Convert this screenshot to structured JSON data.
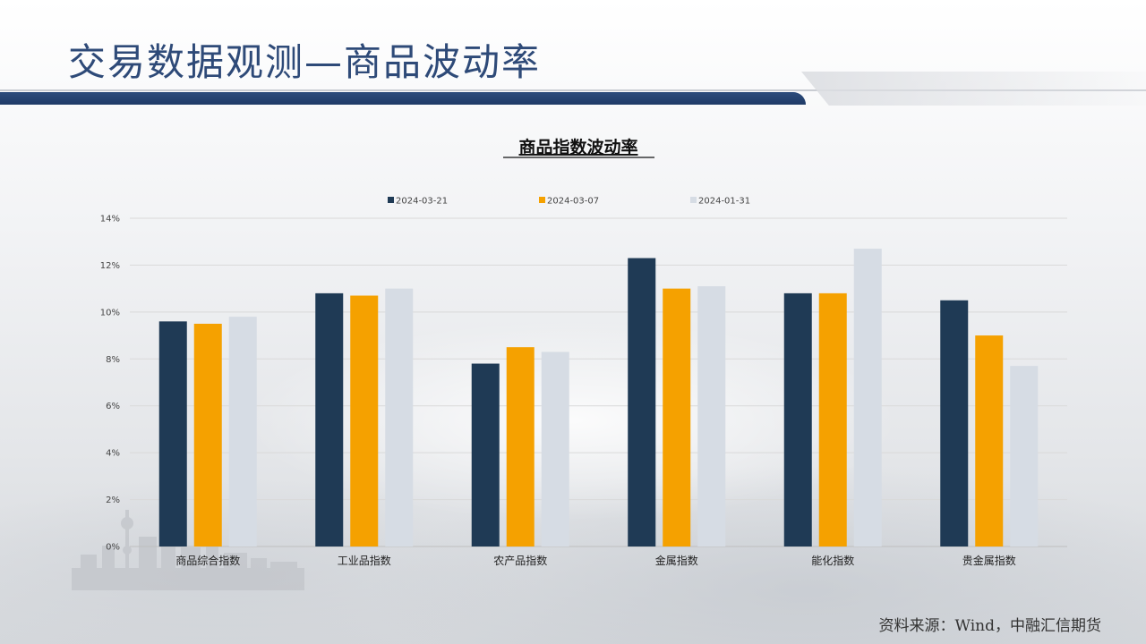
{
  "page": {
    "title": "交易数据观测—商品波动率",
    "source": "资料来源：Wind，中融汇信期货"
  },
  "colors": {
    "title": "#2e4a78",
    "band": "#1f3a66",
    "series": [
      "#1f3a55",
      "#f5a100",
      "#d6dce4"
    ],
    "grid": "#d9d9d9",
    "axis_text": "#444444"
  },
  "chart_data": {
    "type": "bar",
    "title": "商品指数波动率",
    "categories": [
      "商品综合指数",
      "工业品指数",
      "农产品指数",
      "金属指数",
      "能化指数",
      "贵金属指数"
    ],
    "series": [
      {
        "name": "2024-03-21",
        "values": [
          9.6,
          10.8,
          7.8,
          12.3,
          10.8,
          10.5
        ]
      },
      {
        "name": "2024-03-07",
        "values": [
          9.5,
          10.7,
          8.5,
          11.0,
          10.8,
          9.0
        ]
      },
      {
        "name": "2024-01-31",
        "values": [
          9.8,
          11.0,
          8.3,
          11.1,
          12.7,
          7.7
        ]
      }
    ],
    "yticks": [
      "0%",
      "2%",
      "4%",
      "6%",
      "8%",
      "10%",
      "12%",
      "14%"
    ],
    "ylim": [
      0,
      14
    ],
    "xlabel": "",
    "ylabel": "",
    "legend": "top",
    "grid": true
  }
}
